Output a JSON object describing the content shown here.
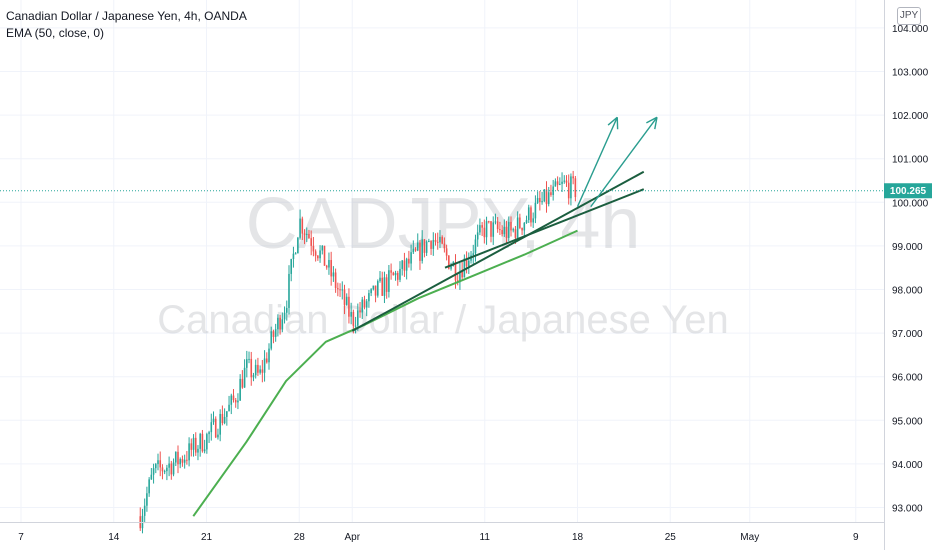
{
  "header": {
    "title": "Canadian Dollar / Japanese Yen, 4h, OANDA",
    "indicator": "EMA (50, close, 0)"
  },
  "currency_button": "JPY",
  "watermark": {
    "symbol": "CADJPY, 4h",
    "name": "Canadian Dollar / Japanese Yen"
  },
  "colors": {
    "up": "#26a69a",
    "down": "#ef5350",
    "ema": "#4caf50",
    "trendline": "#1b5e3f",
    "arrow": "#2a9d8f",
    "price_label": "#26a69a"
  },
  "chart_data": {
    "type": "candlestick",
    "title": "Canadian Dollar / Japanese Yen, 4h, OANDA",
    "ylim": [
      92.8,
      104.3
    ],
    "y_ticks": [
      "93.000",
      "94.000",
      "95.000",
      "96.000",
      "97.000",
      "98.000",
      "99.000",
      "100.000",
      "101.000",
      "102.000",
      "103.000",
      "104.000"
    ],
    "x_ticks": [
      "7",
      "14",
      "21",
      "28",
      "Apr",
      "11",
      "18",
      "25",
      "May",
      "9"
    ],
    "current_price": "100.265",
    "ohlc_waypoints": [
      {
        "date": "Mar 16",
        "close": 92.8
      },
      {
        "date": "Mar 17",
        "close": 93.8
      },
      {
        "date": "Mar 19",
        "close": 94.1
      },
      {
        "date": "Mar 21",
        "close": 94.6
      },
      {
        "date": "Mar 23",
        "close": 95.4
      },
      {
        "date": "Mar 24",
        "close": 96.2
      },
      {
        "date": "Mar 25",
        "close": 96.0
      },
      {
        "date": "Mar 26",
        "close": 96.9
      },
      {
        "date": "Mar 27",
        "close": 97.7
      },
      {
        "date": "Mar 28",
        "close": 99.6
      },
      {
        "date": "Mar 30",
        "close": 98.6
      },
      {
        "date": "Apr 1",
        "close": 97.3
      },
      {
        "date": "Apr 3",
        "close": 98.0
      },
      {
        "date": "Apr 5",
        "close": 98.5
      },
      {
        "date": "Apr 7",
        "close": 99.2
      },
      {
        "date": "Apr 9",
        "close": 98.4
      },
      {
        "date": "Apr 11",
        "close": 99.4
      },
      {
        "date": "Apr 13",
        "close": 99.3
      },
      {
        "date": "Apr 15",
        "close": 99.9
      },
      {
        "date": "Apr 17",
        "close": 100.4
      },
      {
        "date": "Apr 18",
        "close": 100.265
      }
    ],
    "ema_50": [
      {
        "date": "Mar 20",
        "value": 92.8
      },
      {
        "date": "Mar 24",
        "value": 94.5
      },
      {
        "date": "Mar 27",
        "value": 95.9
      },
      {
        "date": "Mar 30",
        "value": 96.8
      },
      {
        "date": "Apr 2",
        "value": 97.2
      },
      {
        "date": "Apr 6",
        "value": 97.8
      },
      {
        "date": "Apr 10",
        "value": 98.3
      },
      {
        "date": "Apr 14",
        "value": 98.8
      },
      {
        "date": "Apr 18",
        "value": 99.35
      }
    ],
    "trendlines": [
      {
        "from": {
          "date": "Apr 1",
          "value": 97.05
        },
        "to": {
          "date": "Apr 23",
          "value": 100.7
        }
      },
      {
        "from": {
          "date": "Apr 8",
          "value": 98.5
        },
        "to": {
          "date": "Apr 23",
          "value": 100.3
        }
      }
    ],
    "arrows": [
      {
        "from": {
          "date": "Apr 18",
          "value": 99.9
        },
        "to": {
          "date": "Apr 21",
          "value": 101.95
        }
      },
      {
        "from": {
          "date": "Apr 19",
          "value": 99.9
        },
        "to": {
          "date": "Apr 24",
          "value": 101.95
        }
      }
    ]
  }
}
